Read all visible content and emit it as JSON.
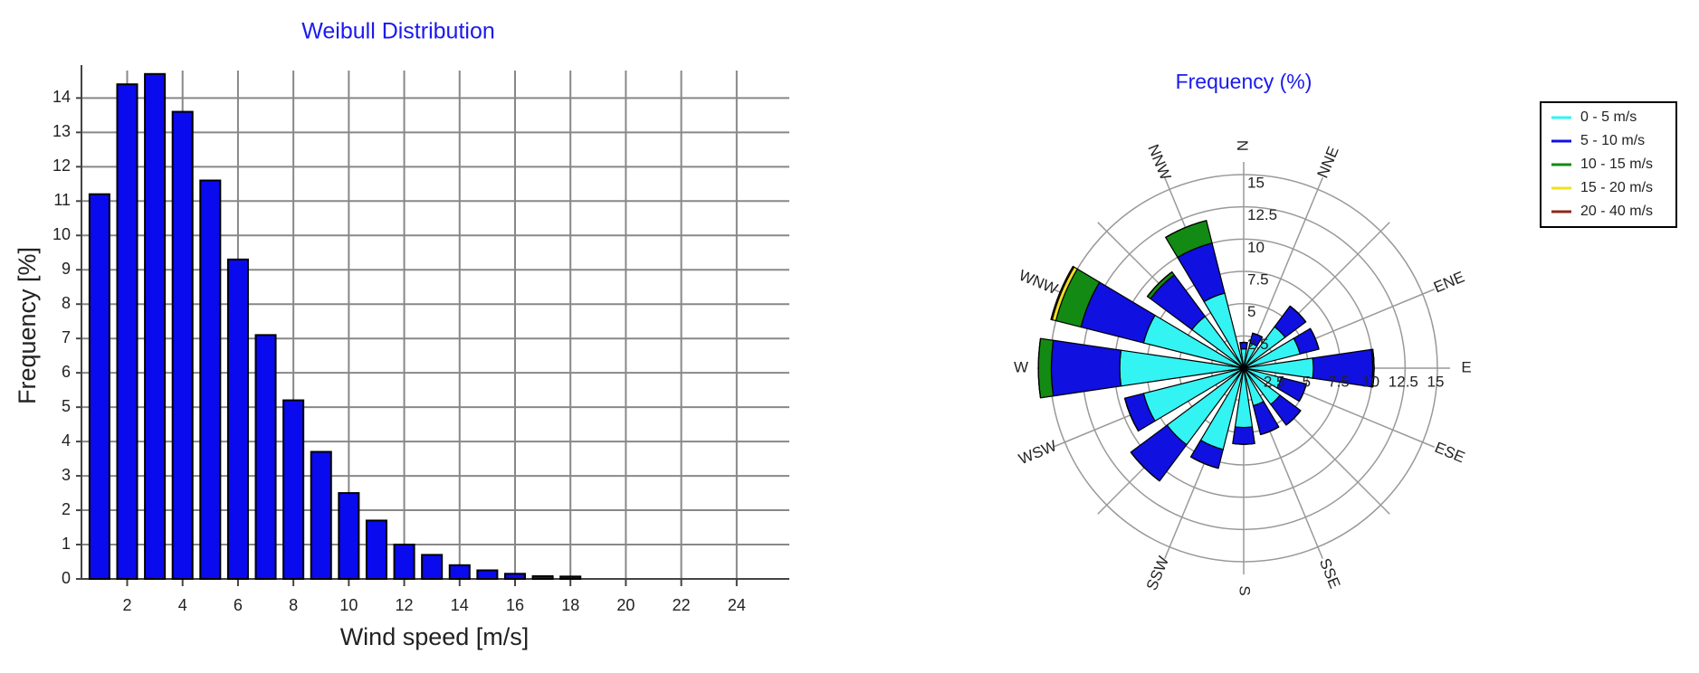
{
  "chart_data": [
    {
      "type": "bar",
      "title": "Weibull Distribution",
      "x_label": "Wind speed [m/s]",
      "y_label": "Frequency [%]",
      "x": [
        1,
        2,
        3,
        4,
        5,
        6,
        7,
        8,
        9,
        10,
        11,
        12,
        13,
        14,
        15,
        16,
        17,
        18
      ],
      "values": [
        11.2,
        14.4,
        14.7,
        13.6,
        11.6,
        9.3,
        7.1,
        5.2,
        3.7,
        2.5,
        1.7,
        1.0,
        0.7,
        0.4,
        0.25,
        0.15,
        0.08,
        0.07
      ],
      "color": "#0a0aee",
      "xlim": [
        0.35,
        25.9
      ],
      "ylim": [
        0,
        14.8
      ],
      "xticks": [
        2,
        4,
        6,
        8,
        10,
        12,
        14,
        16,
        18,
        20,
        22,
        24
      ],
      "yticks": [
        0,
        1,
        2,
        3,
        4,
        5,
        6,
        7,
        8,
        9,
        10,
        11,
        12,
        13,
        14
      ],
      "grid": true
    },
    {
      "type": "windrose",
      "title": "Frequency (%)",
      "categories": [
        "N",
        "NNE",
        null,
        "ENE",
        "E",
        "ESE",
        null,
        "SSE",
        "S",
        "SSW",
        null,
        "WSW",
        "W",
        "WNW",
        null,
        "NNW"
      ],
      "series": [
        {
          "name": "0 - 5 m/s",
          "color": "#33f3f3",
          "values": [
            1.5,
            2,
            4,
            4.5,
            5.4,
            3,
            3.5,
            3,
            4.6,
            6.5,
            7.4,
            8,
            9.6,
            8,
            5,
            6
          ]
        },
        {
          "name": "5 - 10 m/s",
          "color": "#1010e0",
          "values": [
            0.5,
            0.8,
            2,
            1.5,
            4.6,
            2,
            2,
            2.3,
            1.3,
            1.5,
            3.5,
            1.5,
            5.3,
            5,
            4,
            4
          ]
        },
        {
          "name": "10 - 15 m/s",
          "color": "#138a13",
          "values": [
            0,
            0,
            0,
            0,
            0.1,
            0,
            0,
            0,
            0,
            0,
            0,
            0,
            1,
            2,
            0.3,
            1.8
          ]
        },
        {
          "name": "15 - 20 m/s",
          "color": "#f0e020",
          "values": [
            0,
            0,
            0,
            0,
            0,
            0,
            0,
            0,
            0,
            0,
            0,
            0,
            0,
            0.3,
            0,
            0
          ]
        },
        {
          "name": "20 - 40 m/s",
          "color": "#8b2a1a",
          "values": [
            0,
            0,
            0,
            0,
            0,
            0,
            0,
            0,
            0,
            0,
            0,
            0,
            0,
            0.1,
            0,
            0
          ]
        }
      ],
      "rlim": [
        0,
        15
      ],
      "rticks": [
        2.5,
        5,
        7.5,
        10,
        12.5,
        15
      ],
      "legend": "outside right"
    }
  ]
}
